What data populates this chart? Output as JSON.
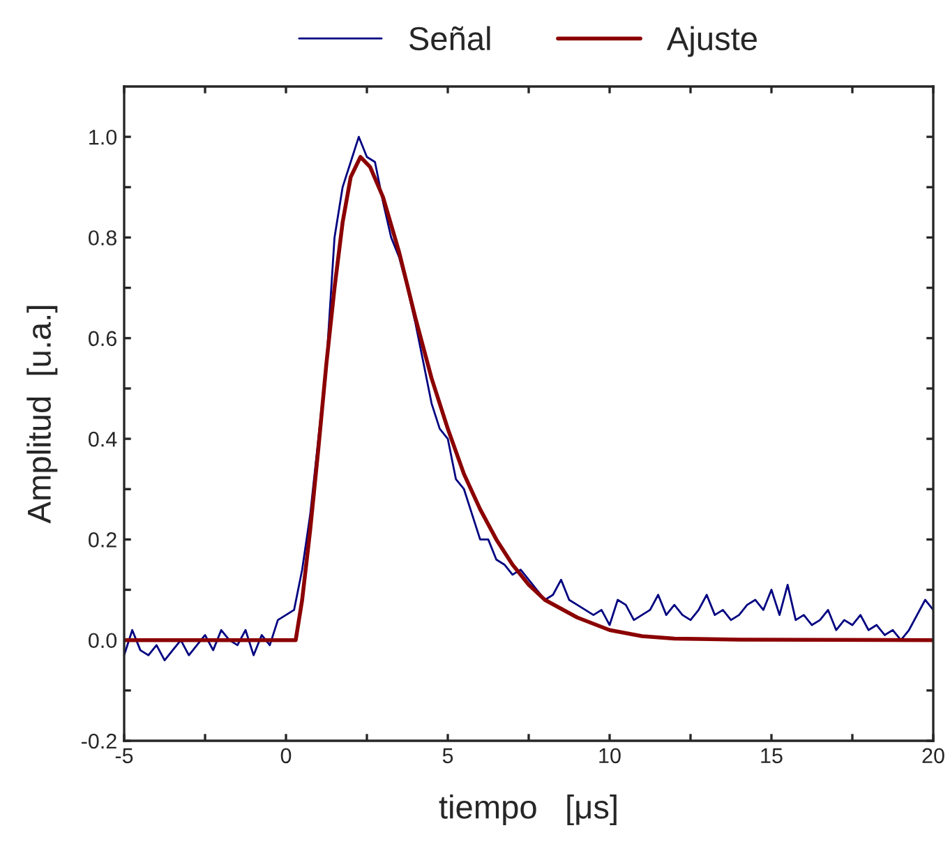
{
  "chart_data": {
    "type": "line",
    "xlabel": "tiempo   [μs]",
    "ylabel": "Amplitud  [u.a.]",
    "xlim": [
      -5,
      20
    ],
    "ylim": [
      -0.2,
      1.1
    ],
    "xticks": [
      -5,
      {
        "value": -2.5,
        "label": null
      },
      0,
      {
        "value": 2.5,
        "label": null
      },
      5,
      {
        "value": 7.5,
        "label": null
      },
      10,
      {
        "value": 12.5,
        "label": null
      },
      15,
      {
        "value": 17.5,
        "label": null
      },
      20
    ],
    "yticks": [
      -0.2,
      {
        "value": -0.1,
        "label": null
      },
      {
        "value": 0,
        "label": "0.0"
      },
      {
        "value": 0.1,
        "label": null
      },
      0.2,
      {
        "value": 0.3,
        "label": null
      },
      0.4,
      {
        "value": 0.5,
        "label": null
      },
      0.6,
      {
        "value": 0.7,
        "label": null
      },
      0.8,
      {
        "value": 0.9,
        "label": null
      },
      {
        "value": 1,
        "label": "1.0"
      }
    ],
    "legend": "top",
    "grid": false,
    "marker": "none",
    "line_style": "solid",
    "series": [
      {
        "name": "Señal",
        "color": "#000080",
        "x": [
          -5,
          -4.75,
          -4.5,
          -4.25,
          -4,
          -3.75,
          -3.5,
          -3.25,
          -3,
          -2.75,
          -2.5,
          -2.25,
          -2,
          -1.75,
          -1.5,
          -1.25,
          -1,
          -0.75,
          -0.5,
          -0.25,
          0,
          0.25,
          0.5,
          0.75,
          1,
          1.25,
          1.5,
          1.75,
          2,
          2.25,
          2.5,
          2.75,
          3,
          3.25,
          3.5,
          3.75,
          4,
          4.25,
          4.5,
          4.75,
          5,
          5.25,
          5.5,
          5.75,
          6,
          6.25,
          6.5,
          6.75,
          7,
          7.25,
          7.5,
          7.75,
          8,
          8.25,
          8.5,
          8.75,
          9,
          9.25,
          9.5,
          9.75,
          10,
          10.25,
          10.5,
          10.75,
          11,
          11.25,
          11.5,
          11.75,
          12,
          12.25,
          12.5,
          12.75,
          13,
          13.25,
          13.5,
          13.75,
          14,
          14.25,
          14.5,
          14.75,
          15,
          15.25,
          15.5,
          15.75,
          16,
          16.25,
          16.5,
          16.75,
          17,
          17.25,
          17.5,
          17.75,
          18,
          18.25,
          18.5,
          18.75,
          19,
          19.25,
          19.5,
          19.75,
          20
        ],
        "values": [
          -0.03,
          0.02,
          -0.02,
          -0.03,
          -0.01,
          -0.04,
          -0.02,
          0.0,
          -0.03,
          -0.01,
          0.01,
          -0.02,
          0.02,
          0.0,
          -0.01,
          0.02,
          -0.03,
          0.01,
          -0.01,
          0.04,
          0.05,
          0.06,
          0.14,
          0.25,
          0.4,
          0.55,
          0.8,
          0.9,
          0.95,
          1.0,
          0.96,
          0.95,
          0.87,
          0.8,
          0.76,
          0.7,
          0.63,
          0.55,
          0.47,
          0.42,
          0.4,
          0.32,
          0.3,
          0.25,
          0.2,
          0.2,
          0.16,
          0.15,
          0.13,
          0.14,
          0.12,
          0.1,
          0.08,
          0.09,
          0.12,
          0.08,
          0.07,
          0.06,
          0.05,
          0.06,
          0.03,
          0.08,
          0.07,
          0.04,
          0.05,
          0.06,
          0.09,
          0.05,
          0.07,
          0.05,
          0.04,
          0.06,
          0.09,
          0.05,
          0.06,
          0.04,
          0.05,
          0.07,
          0.08,
          0.06,
          0.1,
          0.05,
          0.11,
          0.04,
          0.05,
          0.03,
          0.04,
          0.06,
          0.02,
          0.04,
          0.03,
          0.05,
          0.02,
          0.03,
          0.01,
          0.02,
          0.0,
          0.02,
          0.05,
          0.08,
          0.06
        ]
      },
      {
        "name": "Ajuste",
        "color": "#8b0000",
        "x": [
          -5,
          0.3,
          0.5,
          0.75,
          1,
          1.25,
          1.5,
          1.75,
          2,
          2.3,
          2.6,
          3,
          3.5,
          4,
          4.5,
          5,
          5.5,
          6,
          6.5,
          7,
          7.5,
          8,
          9,
          10,
          11,
          12,
          14,
          20
        ],
        "values": [
          0,
          0,
          0.08,
          0.22,
          0.38,
          0.55,
          0.7,
          0.83,
          0.92,
          0.96,
          0.94,
          0.88,
          0.77,
          0.64,
          0.52,
          0.42,
          0.33,
          0.26,
          0.2,
          0.15,
          0.11,
          0.08,
          0.045,
          0.02,
          0.008,
          0.003,
          0.001,
          0
        ]
      }
    ]
  }
}
